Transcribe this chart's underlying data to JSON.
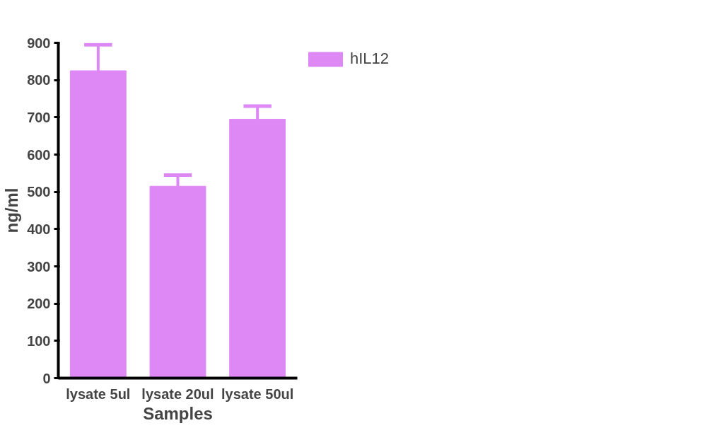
{
  "chart_data": {
    "type": "bar",
    "xlabel": "Samples",
    "ylabel": "ng/ml",
    "categories": [
      "lysate 5ul",
      "lysate 20ul",
      "lysate 50ul"
    ],
    "series": [
      {
        "name": "hIL12",
        "color": "#dd88f5",
        "values": [
          825,
          515,
          695
        ],
        "errors": [
          [
            825,
            895
          ],
          [
            515,
            545
          ],
          [
            695,
            730
          ]
        ]
      }
    ],
    "ylim": [
      0,
      900
    ],
    "yticks": [
      0,
      100,
      200,
      300,
      400,
      500,
      600,
      700,
      800,
      900
    ],
    "grid": false,
    "legend": "top right"
  }
}
